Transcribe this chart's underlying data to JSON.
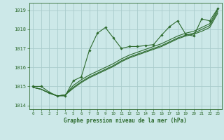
{
  "title": "Graphe pression niveau de la mer (hPa)",
  "background_color": "#cce8e8",
  "grid_color": "#aacccc",
  "line_color": "#2d6a2d",
  "xlim": [
    -0.5,
    23.5
  ],
  "ylim": [
    1013.8,
    1019.4
  ],
  "yticks": [
    1014,
    1015,
    1016,
    1017,
    1018,
    1019
  ],
  "xticks": [
    0,
    1,
    2,
    3,
    4,
    5,
    6,
    7,
    8,
    9,
    10,
    11,
    12,
    13,
    14,
    15,
    16,
    17,
    18,
    19,
    20,
    21,
    22,
    23
  ],
  "series_marked": [
    1015.0,
    1015.0,
    1014.7,
    1014.5,
    1014.5,
    1015.3,
    1015.5,
    1016.9,
    1017.8,
    1018.1,
    1017.55,
    1017.0,
    1017.1,
    1017.1,
    1017.15,
    1017.2,
    1017.7,
    1018.15,
    1018.45,
    1017.75,
    1017.65,
    1018.55,
    1018.45,
    1019.1
  ],
  "series_smooth": [
    [
      1014.95,
      1014.85,
      1014.65,
      1014.5,
      1014.55,
      1014.9,
      1015.2,
      1015.45,
      1015.65,
      1015.85,
      1016.05,
      1016.3,
      1016.5,
      1016.65,
      1016.8,
      1016.95,
      1017.1,
      1017.3,
      1017.5,
      1017.65,
      1017.75,
      1017.9,
      1018.1,
      1018.85
    ],
    [
      1014.95,
      1014.85,
      1014.65,
      1014.5,
      1014.55,
      1014.95,
      1015.25,
      1015.5,
      1015.7,
      1015.9,
      1016.1,
      1016.35,
      1016.55,
      1016.7,
      1016.85,
      1017.0,
      1017.15,
      1017.35,
      1017.55,
      1017.7,
      1017.8,
      1018.0,
      1018.2,
      1018.95
    ],
    [
      1014.95,
      1014.85,
      1014.65,
      1014.5,
      1014.55,
      1015.05,
      1015.35,
      1015.6,
      1015.8,
      1016.0,
      1016.2,
      1016.45,
      1016.65,
      1016.8,
      1016.95,
      1017.1,
      1017.25,
      1017.45,
      1017.65,
      1017.8,
      1017.9,
      1018.1,
      1018.3,
      1019.05
    ]
  ]
}
